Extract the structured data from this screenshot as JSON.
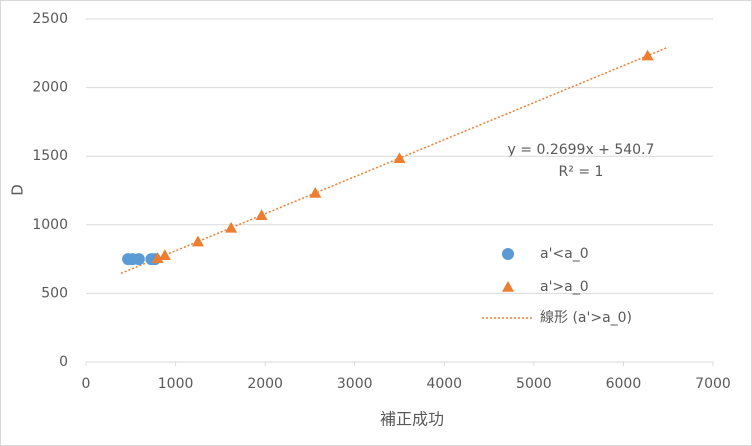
{
  "chart_data": {
    "type": "scatter",
    "x_label": "補正成功",
    "y_label": "D",
    "xlim": [
      0,
      7000
    ],
    "xticks": [
      0,
      1000,
      2000,
      3000,
      4000,
      5000,
      6000,
      7000
    ],
    "ylim": [
      0,
      2500
    ],
    "yticks": [
      0,
      500,
      1000,
      1500,
      2000,
      2500
    ],
    "grid": true,
    "legend": "right",
    "series": [
      {
        "name": "a'<a_0",
        "color": "#5b9bd5",
        "marker": "circle",
        "x": [
          470,
          520,
          590,
          730,
          770
        ],
        "values": [
          750,
          750,
          750,
          750,
          750
        ]
      },
      {
        "name": "a'>a_0",
        "color": "#ed7d31",
        "marker": "triangle",
        "x": [
          800,
          880,
          1250,
          1620,
          1960,
          2560,
          3500,
          6270
        ],
        "values": [
          757,
          778,
          878,
          978,
          1070,
          1232,
          1485,
          2233
        ]
      }
    ],
    "trendline": {
      "name": "線形 (a'>a_0)",
      "color": "#ed7d31",
      "x": [
        390,
        6500
      ],
      "values": [
        646,
        2295
      ]
    },
    "annotations": [
      "y = 0.2699x + 540.7",
      "R² = 1"
    ]
  }
}
